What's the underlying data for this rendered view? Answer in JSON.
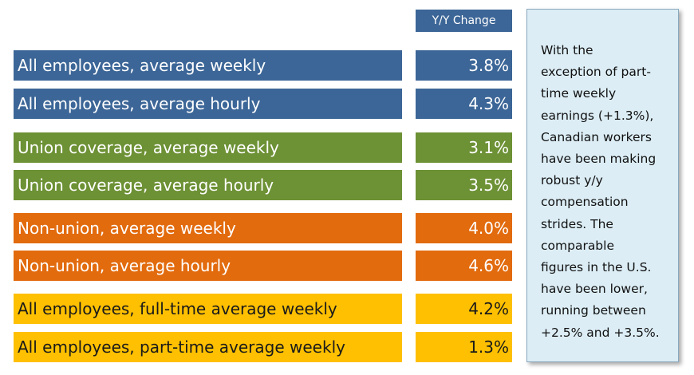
{
  "chart_data": {
    "type": "table",
    "column_header": "Y/Y Change",
    "rows": [
      {
        "label": "All employees, average weekly",
        "display": "3.8%",
        "value": 3.8,
        "color": "#3c6697"
      },
      {
        "label": "All employees, average hourly",
        "display": "4.3%",
        "value": 4.3,
        "color": "#3c6697"
      },
      {
        "label": "Union coverage, average weekly",
        "display": "3.1%",
        "value": 3.1,
        "color": "#6d9135"
      },
      {
        "label": "Union coverage, average hourly",
        "display": "3.5%",
        "value": 3.5,
        "color": "#6d9135"
      },
      {
        "label": "Non-union, average weekly",
        "display": "4.0%",
        "value": 4.0,
        "color": "#e26b0e"
      },
      {
        "label": "Non-union, average hourly",
        "display": "4.6%",
        "value": 4.6,
        "color": "#e26b0e"
      },
      {
        "label": "All employees, full-time average weekly",
        "display": "4.2%",
        "value": 4.2,
        "color": "#fec000"
      },
      {
        "label": "All employees, part-time average weekly",
        "display": "1.3%",
        "value": 1.3,
        "color": "#fec000"
      }
    ]
  },
  "note": {
    "lines": [
      "With the",
      "exception of part-",
      "time weekly",
      "earnings (+1.3%),",
      "Canadian workers",
      "have been making",
      "robust y/y",
      "compensation",
      "strides. The",
      "comparable",
      "figures in the U.S.",
      "have been  lower,",
      "running between",
      "+2.5% and +3.5%."
    ]
  }
}
